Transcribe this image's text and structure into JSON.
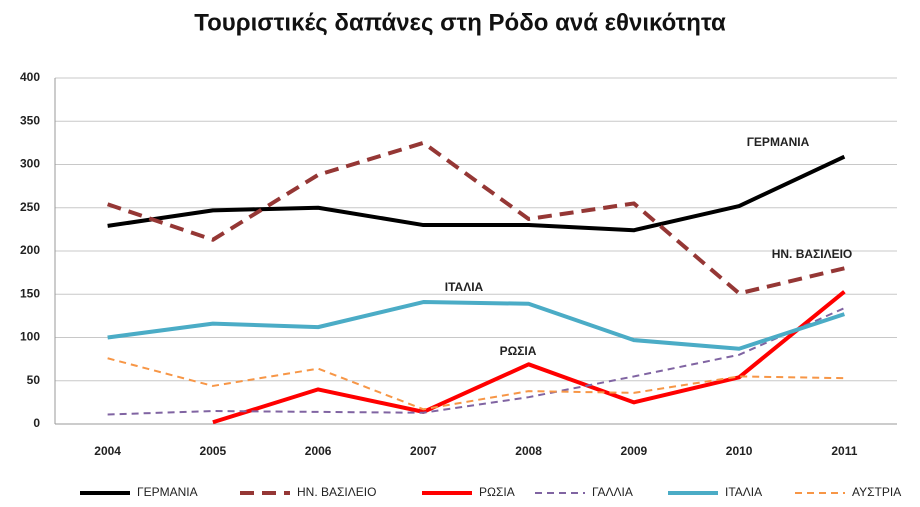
{
  "chart_data": {
    "type": "line",
    "title": "Τουριστικές δαπάνες στη Ρόδο ανά εθνικότητα",
    "categories": [
      "2004",
      "2005",
      "2006",
      "2007",
      "2008",
      "2009",
      "2010",
      "2011"
    ],
    "ylim": [
      0,
      400
    ],
    "yticks": [
      0,
      50,
      100,
      150,
      200,
      250,
      300,
      350,
      400
    ],
    "grid": true,
    "series": [
      {
        "name": "ΓΕΡΜΑΝΙΑ",
        "color": "#000000",
        "dash": false,
        "values": [
          229,
          247,
          250,
          230,
          230,
          224,
          252,
          309
        ]
      },
      {
        "name": "ΗΝ. ΒΑΣΙΛΕΙΟ",
        "color": "#953735",
        "dash": true,
        "values": [
          254,
          213,
          288,
          325,
          237,
          255,
          151,
          180
        ]
      },
      {
        "name": "ΡΩΣΙΑ",
        "color": "#ff0000",
        "dash": false,
        "values": [
          null,
          2,
          40,
          14,
          69,
          25,
          54,
          153
        ]
      },
      {
        "name": "ΓΑΛΛΙΑ",
        "color": "#8064a2",
        "dash": true,
        "values": [
          11,
          15,
          14,
          13,
          31,
          55,
          80,
          134
        ]
      },
      {
        "name": "ΙΤΑΛΙΑ",
        "color": "#4bacc6",
        "dash": false,
        "values": [
          100,
          116,
          112,
          141,
          139,
          97,
          87,
          127
        ]
      },
      {
        "name": "ΑΥΣΤΡΙΑ",
        "color": "#f79646",
        "dash": true,
        "values": [
          76,
          44,
          64,
          17,
          38,
          36,
          55,
          53
        ]
      }
    ],
    "annotations": [
      "ΓΕΡΜΑΝΙΑ",
      "ΗΝ. ΒΑΣΙΛΕΙΟ",
      "ΙΤΑΛΙΑ",
      "ΡΩΣΙΑ"
    ]
  }
}
